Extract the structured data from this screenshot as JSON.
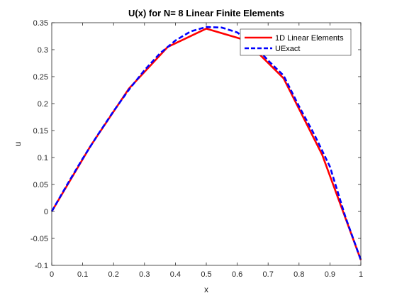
{
  "chart_data": {
    "type": "line",
    "title": "U(x) for N= 8 Linear Finite Elements",
    "xlabel": "x",
    "ylabel": "u",
    "xlim": [
      0,
      1
    ],
    "ylim": [
      -0.1,
      0.35
    ],
    "xticks": [
      0,
      0.1,
      0.2,
      0.3,
      0.4,
      0.5,
      0.6,
      0.7,
      0.8,
      0.9,
      1
    ],
    "xtick_labels": [
      "0",
      "0.1",
      "0.2",
      "0.3",
      "0.4",
      "0.5",
      "0.6",
      "0.7",
      "0.8",
      "0.9",
      "1"
    ],
    "yticks": [
      -0.1,
      -0.05,
      0,
      0.05,
      0.1,
      0.15,
      0.2,
      0.25,
      0.3,
      0.35
    ],
    "ytick_labels": [
      "-0.1",
      "-0.05",
      "0",
      "0.05",
      "0.1",
      "0.15",
      "0.2",
      "0.25",
      "0.3",
      "0.35"
    ],
    "grid": false,
    "legend_position": "top-right",
    "series": [
      {
        "name": "1D Linear Elements",
        "color": "#ff0000",
        "style": "solid",
        "x": [
          0,
          0.125,
          0.25,
          0.375,
          0.5,
          0.625,
          0.75,
          0.875,
          1
        ],
        "y": [
          0,
          0.121,
          0.228,
          0.305,
          0.339,
          0.318,
          0.247,
          0.105,
          -0.09
        ]
      },
      {
        "name": "UExact",
        "color": "#0000ff",
        "style": "dashed",
        "x": [
          0,
          0.05,
          0.1,
          0.15,
          0.2,
          0.25,
          0.3,
          0.35,
          0.4,
          0.45,
          0.5,
          0.55,
          0.6,
          0.65,
          0.7,
          0.75,
          0.8,
          0.85,
          0.9,
          0.95,
          1
        ],
        "y": [
          0,
          0.05,
          0.098,
          0.143,
          0.186,
          0.226,
          0.262,
          0.293,
          0.317,
          0.334,
          0.342,
          0.341,
          0.332,
          0.311,
          0.28,
          0.252,
          0.195,
          0.142,
          0.083,
          -0.01,
          -0.09
        ]
      }
    ]
  }
}
